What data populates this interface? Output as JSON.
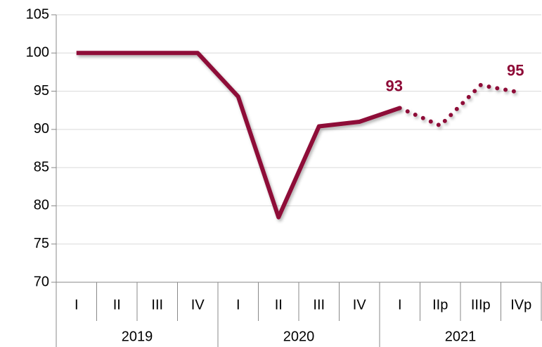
{
  "chart_data": {
    "type": "line",
    "categories": [
      "I",
      "II",
      "III",
      "IV",
      "I",
      "II",
      "III",
      "IV",
      "I",
      "IIp",
      "IIIp",
      "IVp"
    ],
    "groups": [
      {
        "label": "2019",
        "span": 4
      },
      {
        "label": "2020",
        "span": 4
      },
      {
        "label": "2021",
        "span": 4
      }
    ],
    "series": [
      {
        "color": "#8e0b37",
        "style": "solid",
        "values": [
          100,
          100,
          100,
          100,
          94.3,
          78.5,
          90.4,
          91,
          92.8,
          null,
          null,
          null
        ]
      },
      {
        "color": "#8e0b37",
        "style": "dotted",
        "values": [
          null,
          null,
          null,
          null,
          null,
          null,
          null,
          null,
          92.8,
          90.5,
          95.8,
          94.8
        ],
        "value_labels": [
          null,
          null,
          null,
          null,
          null,
          null,
          null,
          null,
          "93",
          null,
          null,
          "95"
        ]
      }
    ],
    "ylim": [
      70,
      105
    ],
    "yticks": [
      70,
      75,
      80,
      85,
      90,
      95,
      100,
      105
    ],
    "grid": true
  }
}
